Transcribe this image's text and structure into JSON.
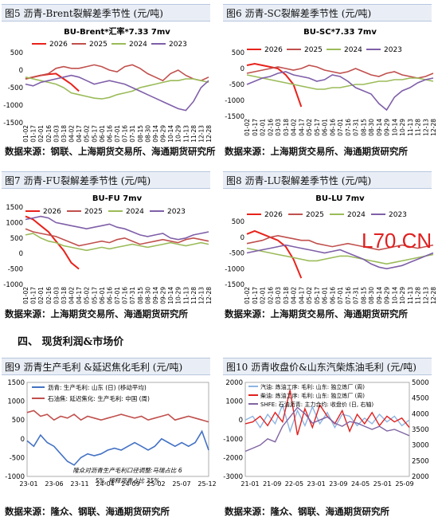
{
  "section_heading": "四、   现货利润&市场价",
  "watermark": "L70.CN",
  "colors": {
    "s2026": "#e8221b",
    "s2025": "#c0504d",
    "s2024": "#9bbb59",
    "s2023": "#7f5fa8",
    "blue": "#4472c4",
    "lightred": "#c0504d",
    "red": "#e02020",
    "lightblue": "#8eb4e3",
    "purple": "#8064a2",
    "green": "#9bbb59"
  },
  "charts": [
    {
      "title": "图5   沥青-Brent裂解差季节性 (元/吨)",
      "source": "数据来源：钢联、上海期货交易所、海通期货研究所",
      "chart_data": {
        "type": "line",
        "title": "BU-Brent*汇率*7.33 7mv",
        "ylim": [
          -1500,
          500
        ],
        "yticks": [
          "500",
          "0",
          "-500",
          "-1000",
          "-1500"
        ],
        "xticks": [
          "01-02",
          "01-17",
          "02-01",
          "02-16",
          "03-03",
          "03-18",
          "04-02",
          "04-17",
          "05-02",
          "05-17",
          "06-01",
          "06-16",
          "07-01",
          "07-16",
          "07-31",
          "08-15",
          "08-30",
          "09-14",
          "09-29",
          "10-14",
          "10-29",
          "11-13",
          "11-28",
          "12-13",
          "12-28"
        ],
        "legend": [
          "2026",
          "2025",
          "2024",
          "2023"
        ],
        "series": [
          {
            "name": "2026",
            "values": [
              -250,
              -200,
              -150,
              -120,
              -100,
              -250,
              -400,
              -600
            ]
          },
          {
            "name": "2025",
            "values": [
              -250,
              -200,
              -150,
              -100,
              50,
              100,
              50,
              50,
              100,
              150,
              100,
              0,
              -50,
              100,
              150,
              50,
              -100,
              -200,
              -300,
              -100,
              0,
              -150,
              -250,
              -300,
              -200
            ]
          },
          {
            "name": "2024",
            "values": [
              -200,
              -250,
              -300,
              -350,
              -400,
              -500,
              -650,
              -700,
              -750,
              -800,
              -820,
              -780,
              -700,
              -650,
              -600,
              -500,
              -450,
              -400,
              -350,
              -300,
              -300,
              -250,
              -250,
              -300,
              -350
            ]
          },
          {
            "name": "2023",
            "values": [
              -400,
              -450,
              -350,
              -300,
              -250,
              -200,
              -150,
              -200,
              -300,
              -400,
              -350,
              -300,
              -350,
              -400,
              -500,
              -600,
              -700,
              -800,
              -900,
              -1000,
              -1100,
              -1150,
              -900,
              -500,
              -300
            ]
          }
        ]
      }
    },
    {
      "title": "图6   沥青-SC裂解差季节性 (元/吨)",
      "source": "数据来源：上海期货交易所、海通期货研究所",
      "chart_data": {
        "type": "line",
        "title": "BU-SC*7.33 7mv",
        "ylim": [
          -1500,
          500
        ],
        "yticks": [
          "500",
          "0",
          "-500",
          "-1000",
          "-1500"
        ],
        "xticks": [
          "01-02",
          "01-17",
          "02-01",
          "02-16",
          "03-03",
          "03-18",
          "04-02",
          "04-17",
          "05-02",
          "05-17",
          "06-01",
          "06-16",
          "07-01",
          "07-16",
          "07-31",
          "08-15",
          "08-30",
          "09-14",
          "09-29",
          "10-14",
          "10-29",
          "11-13",
          "11-28",
          "12-13",
          "12-28"
        ],
        "legend": [
          "2026",
          "2025",
          "2024",
          "2023"
        ],
        "series": [
          {
            "name": "2026",
            "values": [
              100,
              150,
              100,
              50,
              0,
              -200,
              -500,
              -1200
            ]
          },
          {
            "name": "2025",
            "values": [
              -150,
              -100,
              -50,
              0,
              50,
              0,
              -50,
              0,
              100,
              50,
              -50,
              -100,
              -150,
              -100,
              0,
              -100,
              -200,
              -250,
              -150,
              -100,
              -200,
              -250,
              -300,
              -250,
              -150
            ]
          },
          {
            "name": "2024",
            "values": [
              -200,
              -250,
              -300,
              -350,
              -400,
              -450,
              -500,
              -550,
              -600,
              -650,
              -650,
              -600,
              -600,
              -550,
              -500,
              -500,
              -450,
              -400,
              -400,
              -350,
              -350,
              -300,
              -300,
              -350,
              -400
            ]
          },
          {
            "name": "2023",
            "values": [
              -500,
              -400,
              -300,
              -250,
              -150,
              -100,
              -200,
              -250,
              -300,
              -400,
              -350,
              -200,
              -250,
              -400,
              -600,
              -700,
              -800,
              -1100,
              -1300,
              -900,
              -700,
              -600,
              -450,
              -350,
              -300
            ]
          }
        ]
      }
    },
    {
      "title": "图7   沥青-FU裂解差季节性 (元/吨)",
      "source": "数据来源：上海期货交易所、海通期货研究所",
      "chart_data": {
        "type": "line",
        "title": "BU-FU 7mv",
        "ylim": [
          -1000,
          1500
        ],
        "yticks": [
          "1500",
          "1000",
          "500",
          "0",
          "-500",
          "-1000"
        ],
        "xticks": [
          "01-02",
          "01-17",
          "02-01",
          "02-16",
          "03-03",
          "03-18",
          "04-02",
          "04-17",
          "05-02",
          "05-17",
          "06-01",
          "06-16",
          "07-01",
          "07-16",
          "07-31",
          "08-15",
          "08-30",
          "09-14",
          "09-29",
          "10-14",
          "10-29",
          "11-13",
          "11-28",
          "12-13",
          "12-28"
        ],
        "legend": [
          "2026",
          "2025",
          "2024",
          "2023"
        ],
        "series": [
          {
            "name": "2026",
            "values": [
              1200,
              1100,
              900,
              700,
              400,
              100,
              -300,
              -500
            ]
          },
          {
            "name": "2025",
            "values": [
              800,
              700,
              650,
              600,
              550,
              450,
              350,
              250,
              300,
              350,
              400,
              350,
              450,
              500,
              400,
              300,
              350,
              400,
              450,
              400,
              350,
              450,
              500,
              450,
              400
            ]
          },
          {
            "name": "2024",
            "values": [
              600,
              650,
              500,
              400,
              350,
              250,
              200,
              150,
              100,
              150,
              200,
              150,
              200,
              250,
              300,
              250,
              200,
              250,
              300,
              350,
              300,
              250,
              300,
              350,
              300
            ]
          },
          {
            "name": "2023",
            "values": [
              1100,
              1150,
              1200,
              1150,
              1000,
              950,
              900,
              850,
              800,
              850,
              900,
              950,
              850,
              800,
              700,
              600,
              550,
              600,
              650,
              500,
              450,
              500,
              600,
              650,
              700
            ]
          }
        ]
      }
    },
    {
      "title": "图8   沥青-LU裂解差季节性 (元/吨)",
      "source": "数据来源：上海期货交易所、海通期货研究所",
      "chart_data": {
        "type": "line",
        "title": "BU-LU 7mv",
        "ylim": [
          -1500,
          500
        ],
        "yticks": [
          "500",
          "0",
          "-500",
          "-1000",
          "-1500"
        ],
        "xticks": [
          "01-02",
          "01-17",
          "02-01",
          "02-16",
          "03-03",
          "03-18",
          "04-02",
          "04-17",
          "05-02",
          "05-17",
          "06-01",
          "06-16",
          "07-01",
          "07-16",
          "07-31",
          "08-15",
          "08-30",
          "09-14",
          "09-29",
          "10-14",
          "10-29",
          "11-13",
          "11-28",
          "12-13",
          "12-28"
        ],
        "legend": [
          "2026",
          "2025",
          "2024",
          "2023"
        ],
        "series": [
          {
            "name": "2026",
            "values": [
              100,
              200,
              100,
              0,
              -100,
              -300,
              -700,
              -1300
            ]
          },
          {
            "name": "2025",
            "values": [
              -200,
              -150,
              -100,
              0,
              50,
              0,
              -50,
              -100,
              -100,
              -200,
              -250,
              -300,
              -250,
              -200,
              -250,
              -300,
              -350,
              -400,
              -350,
              -300,
              -250,
              -300,
              -350,
              -300,
              -250
            ]
          },
          {
            "name": "2024",
            "values": [
              -350,
              -400,
              -450,
              -500,
              -550,
              -600,
              -650,
              -700,
              -750,
              -750,
              -700,
              -650,
              -600,
              -600,
              -650,
              -700,
              -750,
              -800,
              -850,
              -800,
              -750,
              -700,
              -650,
              -600,
              -550
            ]
          },
          {
            "name": "2023",
            "values": [
              -500,
              -450,
              -400,
              -350,
              -300,
              -250,
              -300,
              -350,
              -400,
              -450,
              -500,
              -450,
              -400,
              -500,
              -600,
              -700,
              -850,
              -950,
              -1000,
              -950,
              -900,
              -800,
              -700,
              -600,
              -500
            ]
          }
        ]
      }
    },
    {
      "title": "图9   沥青生产毛利 &延迟焦化毛利 (元/吨)",
      "source": "数据来源：隆众、钢联、海通期货研究所",
      "annotation": "隆众对沥青生产毛利口径调整:马瑞占比 65%, 稀释沥青占比 35%",
      "chart_data": {
        "type": "line",
        "ylim": [
          -1000,
          1500
        ],
        "yticks": [
          "1500",
          "1000",
          "500",
          "0",
          "-500",
          "-1000"
        ],
        "xticks": [
          "23-01",
          "23-06",
          "23-11",
          "24-04",
          "24-09",
          "25-02",
          "25-07",
          "25-12"
        ],
        "series": [
          {
            "name": "沥青: 生产毛利: 山东 (日) (移动平均)",
            "values": [
              -50,
              -200,
              100,
              -100,
              -200,
              -400,
              -600,
              -700,
              -500,
              -400,
              -450,
              -400,
              -300,
              -250,
              -300,
              -200,
              -100,
              -200,
              -300,
              -200,
              0,
              -100,
              -200,
              -100,
              -200,
              -100,
              200,
              -300
            ]
          },
          {
            "name": "石油焦: 延迟焦化: 生产毛利: 中国 (周)",
            "values": [
              700,
              750,
              600,
              650,
              500,
              600,
              550,
              650,
              500,
              600,
              550,
              500,
              550,
              600,
              650,
              600,
              550,
              600,
              500,
              550,
              600,
              650,
              500,
              550,
              600,
              550,
              500,
              450
            ]
          }
        ]
      }
    },
    {
      "title": "图10   沥青收盘价&山东汽柴炼油毛利 (元/吨)",
      "source": "数据来源：隆众、钢联、海通期货研究所",
      "chart_data": {
        "type": "line",
        "ylim_left": [
          -3000,
          2000
        ],
        "ylim_right": [
          2000,
          5000
        ],
        "yticks_left": [
          "2000",
          "1000",
          "0",
          "-1000",
          "-2000",
          "-3000"
        ],
        "yticks_right": [
          "5000",
          "4500",
          "4000",
          "3500",
          "3000",
          "2500",
          "2000"
        ],
        "xticks": [
          "21-01",
          "21-09",
          "22-05",
          "23-01",
          "23-09",
          "24-05",
          "25-01",
          "25-09"
        ],
        "series": [
          {
            "name": "汽油: 炼油工序: 毛利: 山东: 独立炼厂 (周)",
            "values": [
              0,
              200,
              -400,
              300,
              -200,
              800,
              -600,
              500,
              -300,
              700,
              -200,
              400,
              -400,
              300,
              200,
              -300,
              100,
              -200,
              300,
              -100,
              200,
              -300,
              0
            ]
          },
          {
            "name": "柴油: 炼油工序: 毛利: 山东: 独立炼厂 (周)",
            "values": [
              -200,
              -100,
              200,
              -300,
              400,
              -100,
              1600,
              -800,
              600,
              -400,
              800,
              200,
              -200,
              500,
              -600,
              300,
              -200,
              400,
              -300,
              200,
              -100,
              100,
              -400
            ]
          },
          {
            "name": "SHFE: 石油沥青: 主力合约: 收盘价 (日, 右轴)",
            "values": [
              2800,
              2900,
              3000,
              3200,
              3100,
              3600,
              3900,
              4200,
              4000,
              3700,
              3800,
              3900,
              3700,
              3600,
              3750,
              3700,
              3600,
              3500,
              3600,
              3450,
              3500,
              3400,
              3300
            ]
          }
        ]
      }
    }
  ]
}
